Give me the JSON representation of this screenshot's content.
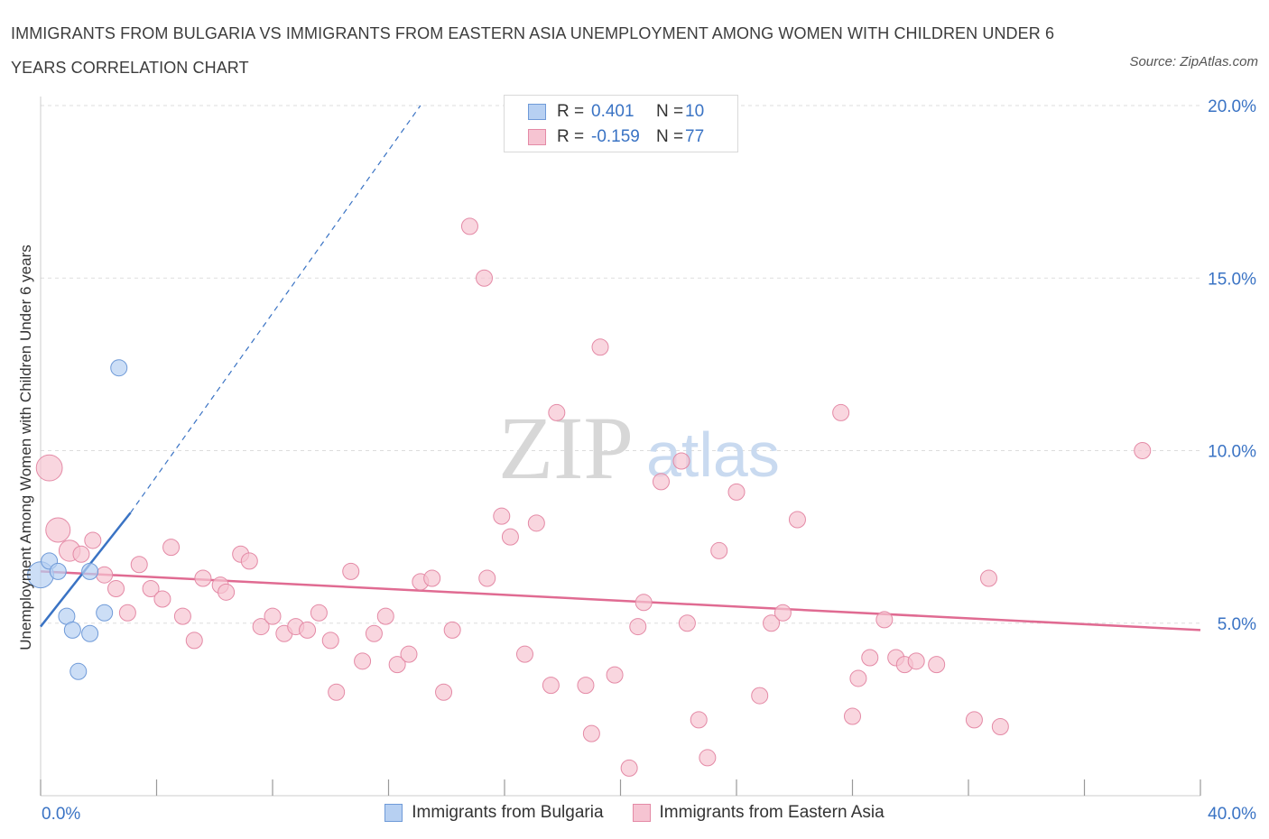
{
  "header": {
    "title": "IMMIGRANTS FROM BULGARIA VS IMMIGRANTS FROM EASTERN ASIA UNEMPLOYMENT AMONG WOMEN WITH CHILDREN UNDER 6 YEARS CORRELATION CHART",
    "source": "Source: ZipAtlas.com"
  },
  "watermark": {
    "zip": "ZIP",
    "atlas": "atlas"
  },
  "legend": {
    "rows": [
      {
        "r_label": "R =",
        "r_value": "0.401",
        "n_label": "N =",
        "n_value": "10"
      },
      {
        "r_label": "R =",
        "r_value": "-0.159",
        "n_label": "N =",
        "n_value": "77"
      }
    ]
  },
  "bottom_legend": {
    "items": [
      {
        "label": "Immigrants from Bulgaria"
      },
      {
        "label": "Immigrants from Eastern Asia"
      }
    ]
  },
  "colors": {
    "bulgaria_fill": "#b7d0f2",
    "bulgaria_stroke": "#6f9ad8",
    "bulgaria_line": "#3a73c4",
    "easia_fill": "#f6c4d2",
    "easia_stroke": "#e48aa6",
    "easia_line": "#e06b92",
    "tick_label": "#3a73c4",
    "grid": "#dddddd"
  },
  "chart_data": {
    "type": "scatter",
    "title": "IMMIGRANTS FROM BULGARIA VS IMMIGRANTS FROM EASTERN ASIA UNEMPLOYMENT AMONG WOMEN WITH CHILDREN UNDER 6 YEARS CORRELATION CHART",
    "xlabel": "",
    "ylabel": "Unemployment Among Women with Children Under 6 years",
    "xlim": [
      0,
      40
    ],
    "ylim": [
      0,
      20
    ],
    "x_tick_labels": [
      "0.0%",
      "40.0%"
    ],
    "y_ticks": [
      5,
      10,
      15,
      20
    ],
    "y_tick_labels": [
      "5.0%",
      "10.0%",
      "15.0%",
      "20.0%"
    ],
    "grid": true,
    "legend_position": "top-center",
    "series": [
      {
        "name": "Immigrants from Bulgaria",
        "r": 0.401,
        "n": 10,
        "points": [
          {
            "x": 0.0,
            "y": 6.4,
            "size": 1.6
          },
          {
            "x": 0.3,
            "y": 6.8,
            "size": 1
          },
          {
            "x": 0.6,
            "y": 6.5,
            "size": 1
          },
          {
            "x": 0.9,
            "y": 5.2,
            "size": 1
          },
          {
            "x": 1.1,
            "y": 4.8,
            "size": 1
          },
          {
            "x": 1.3,
            "y": 3.6,
            "size": 1
          },
          {
            "x": 1.7,
            "y": 4.7,
            "size": 1
          },
          {
            "x": 1.7,
            "y": 6.5,
            "size": 1
          },
          {
            "x": 2.2,
            "y": 5.3,
            "size": 1
          },
          {
            "x": 2.7,
            "y": 12.4,
            "size": 1
          }
        ],
        "trend": {
          "x0": 0.0,
          "y0": 4.9,
          "x1": 3.1,
          "y1": 8.2,
          "dash_to_x": 13.1,
          "dash_to_y": 20.0
        }
      },
      {
        "name": "Immigrants from Eastern Asia",
        "r": -0.159,
        "n": 77,
        "points": [
          {
            "x": 0.3,
            "y": 9.5,
            "size": 1.6
          },
          {
            "x": 0.6,
            "y": 7.7,
            "size": 1.5
          },
          {
            "x": 1.0,
            "y": 7.1,
            "size": 1.3
          },
          {
            "x": 1.4,
            "y": 7.0,
            "size": 1
          },
          {
            "x": 1.8,
            "y": 7.4,
            "size": 1
          },
          {
            "x": 2.2,
            "y": 6.4,
            "size": 1
          },
          {
            "x": 2.6,
            "y": 6.0,
            "size": 1
          },
          {
            "x": 3.0,
            "y": 5.3,
            "size": 1
          },
          {
            "x": 3.4,
            "y": 6.7,
            "size": 1
          },
          {
            "x": 3.8,
            "y": 6.0,
            "size": 1
          },
          {
            "x": 4.2,
            "y": 5.7,
            "size": 1
          },
          {
            "x": 4.5,
            "y": 7.2,
            "size": 1
          },
          {
            "x": 4.9,
            "y": 5.2,
            "size": 1
          },
          {
            "x": 5.3,
            "y": 4.5,
            "size": 1
          },
          {
            "x": 5.6,
            "y": 6.3,
            "size": 1
          },
          {
            "x": 6.2,
            "y": 6.1,
            "size": 1
          },
          {
            "x": 6.4,
            "y": 5.9,
            "size": 1
          },
          {
            "x": 6.9,
            "y": 7.0,
            "size": 1
          },
          {
            "x": 7.2,
            "y": 6.8,
            "size": 1
          },
          {
            "x": 7.6,
            "y": 4.9,
            "size": 1
          },
          {
            "x": 8.0,
            "y": 5.2,
            "size": 1
          },
          {
            "x": 8.4,
            "y": 4.7,
            "size": 1
          },
          {
            "x": 8.8,
            "y": 4.9,
            "size": 1
          },
          {
            "x": 9.2,
            "y": 4.8,
            "size": 1
          },
          {
            "x": 9.6,
            "y": 5.3,
            "size": 1
          },
          {
            "x": 10.0,
            "y": 4.5,
            "size": 1
          },
          {
            "x": 10.2,
            "y": 3.0,
            "size": 1
          },
          {
            "x": 10.7,
            "y": 6.5,
            "size": 1
          },
          {
            "x": 11.1,
            "y": 3.9,
            "size": 1
          },
          {
            "x": 11.5,
            "y": 4.7,
            "size": 1
          },
          {
            "x": 11.9,
            "y": 5.2,
            "size": 1
          },
          {
            "x": 12.3,
            "y": 3.8,
            "size": 1
          },
          {
            "x": 12.7,
            "y": 4.1,
            "size": 1
          },
          {
            "x": 13.1,
            "y": 6.2,
            "size": 1
          },
          {
            "x": 13.5,
            "y": 6.3,
            "size": 1
          },
          {
            "x": 13.9,
            "y": 3.0,
            "size": 1
          },
          {
            "x": 14.2,
            "y": 4.8,
            "size": 1
          },
          {
            "x": 14.8,
            "y": 16.5,
            "size": 1
          },
          {
            "x": 15.3,
            "y": 15.0,
            "size": 1
          },
          {
            "x": 15.4,
            "y": 6.3,
            "size": 1
          },
          {
            "x": 15.9,
            "y": 8.1,
            "size": 1
          },
          {
            "x": 16.2,
            "y": 7.5,
            "size": 1
          },
          {
            "x": 16.7,
            "y": 4.1,
            "size": 1
          },
          {
            "x": 17.1,
            "y": 7.9,
            "size": 1
          },
          {
            "x": 17.6,
            "y": 3.2,
            "size": 1
          },
          {
            "x": 17.8,
            "y": 11.1,
            "size": 1
          },
          {
            "x": 18.8,
            "y": 3.2,
            "size": 1
          },
          {
            "x": 19.0,
            "y": 1.8,
            "size": 1
          },
          {
            "x": 19.3,
            "y": 13.0,
            "size": 1
          },
          {
            "x": 19.8,
            "y": 3.5,
            "size": 1
          },
          {
            "x": 20.3,
            "y": 0.8,
            "size": 1
          },
          {
            "x": 20.6,
            "y": 4.9,
            "size": 1
          },
          {
            "x": 20.8,
            "y": 5.6,
            "size": 1
          },
          {
            "x": 21.4,
            "y": 9.1,
            "size": 1
          },
          {
            "x": 22.1,
            "y": 9.7,
            "size": 1
          },
          {
            "x": 22.3,
            "y": 5.0,
            "size": 1
          },
          {
            "x": 22.7,
            "y": 2.2,
            "size": 1
          },
          {
            "x": 23.0,
            "y": 1.1,
            "size": 1
          },
          {
            "x": 23.4,
            "y": 7.1,
            "size": 1
          },
          {
            "x": 24.0,
            "y": 8.8,
            "size": 1
          },
          {
            "x": 24.8,
            "y": 2.9,
            "size": 1
          },
          {
            "x": 25.2,
            "y": 5.0,
            "size": 1
          },
          {
            "x": 25.6,
            "y": 5.3,
            "size": 1
          },
          {
            "x": 26.1,
            "y": 8.0,
            "size": 1
          },
          {
            "x": 27.6,
            "y": 11.1,
            "size": 1
          },
          {
            "x": 28.0,
            "y": 2.3,
            "size": 1
          },
          {
            "x": 28.2,
            "y": 3.4,
            "size": 1
          },
          {
            "x": 28.6,
            "y": 4.0,
            "size": 1
          },
          {
            "x": 29.1,
            "y": 5.1,
            "size": 1
          },
          {
            "x": 29.5,
            "y": 4.0,
            "size": 1
          },
          {
            "x": 29.8,
            "y": 3.8,
            "size": 1
          },
          {
            "x": 30.2,
            "y": 3.9,
            "size": 1
          },
          {
            "x": 30.9,
            "y": 3.8,
            "size": 1
          },
          {
            "x": 32.2,
            "y": 2.2,
            "size": 1
          },
          {
            "x": 32.7,
            "y": 6.3,
            "size": 1
          },
          {
            "x": 33.1,
            "y": 2.0,
            "size": 1
          },
          {
            "x": 38.0,
            "y": 10.0,
            "size": 1
          }
        ],
        "trend": {
          "x0": 0.0,
          "y0": 6.5,
          "x1": 40.0,
          "y1": 4.8
        }
      }
    ]
  }
}
